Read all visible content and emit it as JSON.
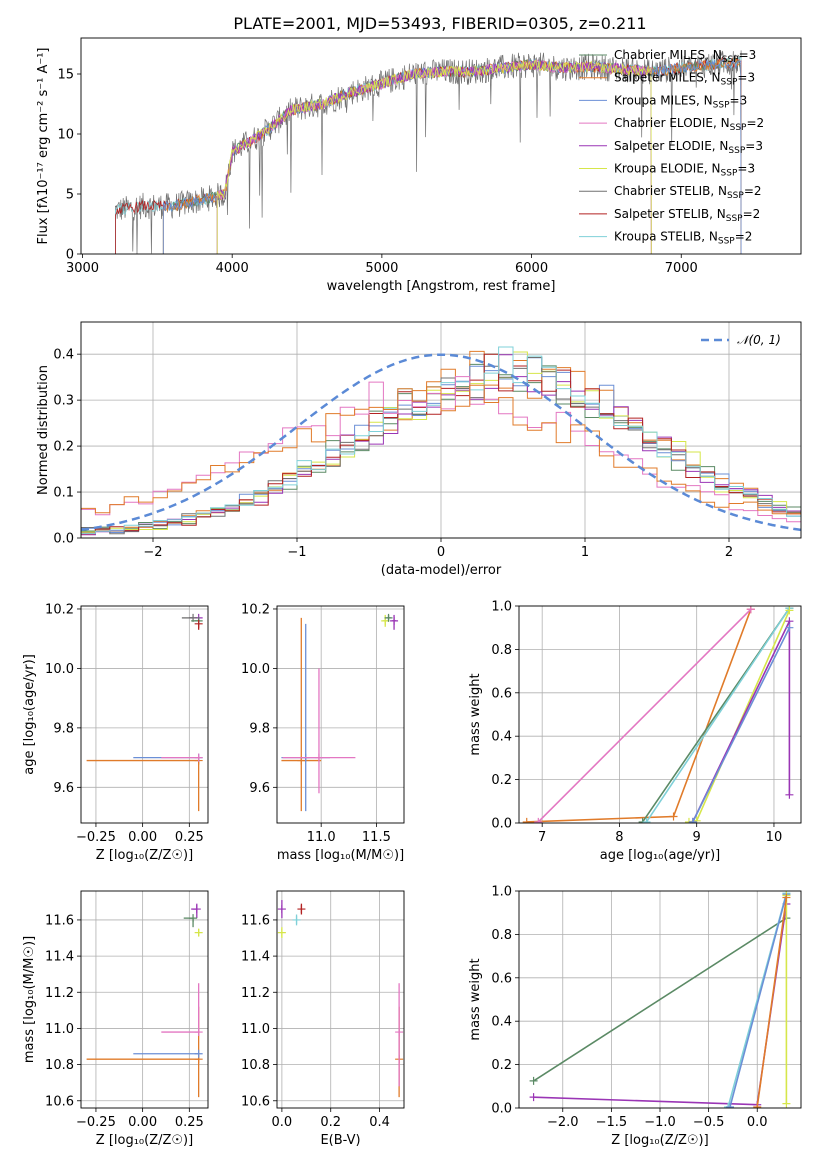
{
  "figure": {
    "title": "PLATE=2001, MJD=53493, FIBERID=0305, z=0.211"
  },
  "colors": {
    "chabrier_miles": "#5b8a65",
    "salpeter_miles": "#e07b2a",
    "kroupa_miles": "#6b8fd6",
    "chabrier_elodie": "#e377c2",
    "salpeter_elodie": "#9a35b5",
    "kroupa_elodie": "#d6e64a",
    "chabrier_stelib": "#707070",
    "salpeter_stelib": "#b22222",
    "kroupa_stelib": "#7fd0d8",
    "normal": "#5b8ad6"
  },
  "chart_data": [
    {
      "id": "spectrum",
      "type": "line",
      "xlabel": "wavelength [Angstrom, rest frame]",
      "ylabel": "Flux [fλ10⁻¹⁷ erg cm⁻² s⁻¹ A⁻¹]",
      "xlim": [
        2990,
        7800
      ],
      "ylim": [
        0,
        18
      ],
      "xticks": [
        3000,
        4000,
        5000,
        6000,
        7000
      ],
      "yticks": [
        0,
        5,
        10,
        15
      ],
      "grid": false,
      "legend_position": "right",
      "series": [
        {
          "key": "chabrier_miles",
          "legend": "Chabrier MILES, N",
          "sub": "SSP",
          "suffix": "=3"
        },
        {
          "key": "salpeter_miles",
          "legend": "Salpeter MILES, N",
          "sub": "SSP",
          "suffix": "=3"
        },
        {
          "key": "kroupa_miles",
          "legend": "Kroupa MILES, N",
          "sub": "SSP",
          "suffix": "=3"
        },
        {
          "key": "chabrier_elodie",
          "legend": "Chabrier ELODIE, N",
          "sub": "SSP",
          "suffix": "=2"
        },
        {
          "key": "salpeter_elodie",
          "legend": "Salpeter ELODIE, N",
          "sub": "SSP",
          "suffix": "=3"
        },
        {
          "key": "kroupa_elodie",
          "legend": "Kroupa ELODIE, N",
          "sub": "SSP",
          "suffix": "=3"
        },
        {
          "key": "chabrier_stelib",
          "legend": "Chabrier STELIB, N",
          "sub": "SSP",
          "suffix": "=2"
        },
        {
          "key": "salpeter_stelib",
          "legend": "Salpeter STELIB, N",
          "sub": "SSP",
          "suffix": "=2"
        },
        {
          "key": "kroupa_stelib",
          "legend": "Kroupa STELIB, N",
          "sub": "SSP",
          "suffix": "=2"
        }
      ],
      "continuum": {
        "x": [
          3200,
          3400,
          3600,
          3800,
          3950,
          4000,
          4200,
          4400,
          4600,
          4800,
          5000,
          5200,
          5400,
          5600,
          5800,
          6000,
          6200,
          6400,
          6600,
          6800,
          7000,
          7200,
          7400
        ],
        "y": [
          3.6,
          4.0,
          4.0,
          4.5,
          5.0,
          8.5,
          10.0,
          12.0,
          12.5,
          13.5,
          14.2,
          15.0,
          15.2,
          15.2,
          15.5,
          15.8,
          15.5,
          15.6,
          15.4,
          15.2,
          15.5,
          15.8,
          16.0
        ]
      },
      "series_ranges": {
        "chabrier_miles": [
          3540,
          7400
        ],
        "salpeter_miles": [
          3540,
          7400
        ],
        "kroupa_miles": [
          3540,
          7400
        ],
        "chabrier_elodie": [
          3900,
          6800
        ],
        "salpeter_elodie": [
          3900,
          6800
        ],
        "kroupa_elodie": [
          3900,
          6800
        ],
        "chabrier_stelib": [
          3220,
          7400
        ],
        "salpeter_stelib": [
          3220,
          7400
        ],
        "kroupa_stelib": [
          3220,
          7400
        ]
      }
    },
    {
      "id": "residual_hist",
      "type": "line",
      "xlabel": "(data-model)/error",
      "ylabel": "Normed distribution",
      "xlim": [
        -2.5,
        2.5
      ],
      "ylim": [
        0,
        0.47
      ],
      "xticks": [
        -2,
        -1,
        0,
        1,
        2
      ],
      "xtick_labels": [
        "−2",
        "−1",
        "0",
        "1",
        "2"
      ],
      "yticks": [
        0.0,
        0.1,
        0.2,
        0.3,
        0.4
      ],
      "ytick_labels": [
        "0.0",
        "0.1",
        "0.2",
        "0.3",
        "0.4"
      ],
      "grid": true,
      "legend_position": "top-right",
      "legend": "𝒩(0, 1)",
      "bin_width": 0.1,
      "histograms": {
        "centered": {
          "mu": 0.0,
          "sigma": 1.0
        },
        "shifted": {
          "mu": 0.45,
          "sigma": 0.95
        }
      },
      "shifted_keys": [
        "chabrier_miles",
        "salpeter_miles",
        "kroupa_miles",
        "salpeter_elodie",
        "kroupa_elodie",
        "chabrier_stelib",
        "salpeter_stelib",
        "kroupa_stelib"
      ],
      "centered_keys": [
        "chabrier_elodie",
        "salpeter_miles"
      ]
    },
    {
      "id": "age_vs_Z",
      "type": "scatter",
      "xlabel": "Z [log₁₀(Z/Z☉)]",
      "ylabel": "age  [log₁₀(age/yr)]",
      "xlim": [
        -0.33,
        0.35
      ],
      "ylim": [
        9.48,
        10.21
      ],
      "xticks": [
        -0.25,
        0.0,
        0.25
      ],
      "xtick_labels": [
        "−0.25",
        "0.00",
        "0.25"
      ],
      "yticks": [
        9.6,
        9.8,
        10.0,
        10.2
      ],
      "ytick_labels": [
        "9.6",
        "9.8",
        "10.0",
        "10.2"
      ],
      "grid": true,
      "errorbars": [
        {
          "key": "salpeter_miles",
          "x": 0.3,
          "y": 9.69,
          "xerr": [
            0.6,
            0.0
          ],
          "yerr": [
            0.17,
            0.0
          ]
        },
        {
          "key": "kroupa_miles",
          "x": 0.3,
          "y": 9.7,
          "xerr": [
            0.35,
            0.0
          ],
          "yerr": [
            0.0,
            0.0
          ]
        },
        {
          "key": "chabrier_elodie",
          "x": 0.3,
          "y": 9.7,
          "xerr": [
            0.2,
            0.0
          ],
          "yerr": [
            0.0,
            0.0
          ]
        },
        {
          "key": "salpeter_elodie",
          "x": 0.3,
          "y": 10.17,
          "xerr": [
            0.05,
            0.0
          ],
          "yerr": [
            0.02,
            0.0
          ]
        },
        {
          "key": "chabrier_stelib",
          "x": 0.27,
          "y": 10.17,
          "xerr": [
            0.06,
            0.0
          ],
          "yerr": [
            0.0,
            0.0
          ]
        },
        {
          "key": "chabrier_miles",
          "x": 0.3,
          "y": 10.16,
          "xerr": [
            0.04,
            0.0
          ],
          "yerr": [
            0.0,
            0.0
          ]
        },
        {
          "key": "salpeter_stelib",
          "x": 0.3,
          "y": 10.15,
          "xerr": [
            0.0,
            0.0
          ],
          "yerr": [
            0.02,
            0.0
          ]
        }
      ]
    },
    {
      "id": "age_vs_mass",
      "type": "scatter",
      "xlabel": "mass [log₁₀(M/M☉)]",
      "ylabel": "",
      "xlim": [
        10.6,
        11.75
      ],
      "ylim": [
        9.48,
        10.21
      ],
      "xticks": [
        11.0,
        11.5
      ],
      "xtick_labels": [
        "11.0",
        "11.5"
      ],
      "yticks": [
        9.6,
        9.8,
        10.0,
        10.2
      ],
      "ytick_labels": [
        "9.6",
        "9.8",
        "10.0",
        "10.2"
      ],
      "grid": true,
      "errorbars": [
        {
          "key": "salpeter_miles",
          "x": 10.82,
          "y": 9.69,
          "xerr": [
            0.18,
            0.18
          ],
          "yerr": [
            0.17,
            0.48
          ]
        },
        {
          "key": "kroupa_miles",
          "x": 10.86,
          "y": 9.7,
          "xerr": [
            0.22,
            0.22
          ],
          "yerr": [
            0.18,
            0.45
          ]
        },
        {
          "key": "chabrier_elodie",
          "x": 10.98,
          "y": 9.7,
          "xerr": [
            0.33,
            0.33
          ],
          "yerr": [
            0.12,
            0.3
          ]
        },
        {
          "key": "salpeter_elodie",
          "x": 11.66,
          "y": 10.16,
          "xerr": [
            0.02,
            0.02
          ],
          "yerr": [
            0.03,
            0.02
          ]
        },
        {
          "key": "kroupa_elodie",
          "x": 11.58,
          "y": 10.16,
          "xerr": [
            0.02,
            0.02
          ],
          "yerr": [
            0.02,
            0.02
          ]
        },
        {
          "key": "chabrier_miles",
          "x": 11.61,
          "y": 10.17,
          "xerr": [
            0.02,
            0.02
          ],
          "yerr": [
            0.01,
            0.01
          ]
        }
      ]
    },
    {
      "id": "weight_vs_age",
      "type": "line",
      "xlabel": "age  [log₁₀(age/yr)]",
      "ylabel": "mass weight",
      "xlim": [
        6.7,
        10.35
      ],
      "ylim": [
        0,
        1
      ],
      "xticks": [
        7,
        8,
        9,
        10
      ],
      "yticks": [
        0.0,
        0.2,
        0.4,
        0.6,
        0.8,
        1.0
      ],
      "ytick_labels": [
        "0.0",
        "0.2",
        "0.4",
        "0.6",
        "0.8",
        "1.0"
      ],
      "grid": true,
      "series": [
        {
          "key": "salpeter_miles",
          "x": [
            6.8,
            8.7,
            9.7
          ],
          "y": [
            0.005,
            0.03,
            0.985
          ]
        },
        {
          "key": "chabrier_elodie",
          "x": [
            6.95,
            9.7
          ],
          "y": [
            0.005,
            0.985
          ]
        },
        {
          "key": "chabrier_miles",
          "x": [
            8.3,
            10.2
          ],
          "y": [
            0.005,
            0.99
          ]
        },
        {
          "key": "kroupa_stelib",
          "x": [
            8.35,
            10.2
          ],
          "y": [
            0.005,
            0.99
          ]
        },
        {
          "key": "kroupa_elodie",
          "x": [
            8.9,
            9.0,
            10.2
          ],
          "y": [
            0.005,
            0.01,
            0.98
          ]
        },
        {
          "key": "salpeter_elodie",
          "x": [
            8.95,
            10.2,
            10.2
          ],
          "y": [
            0.005,
            0.93,
            0.13
          ]
        },
        {
          "key": "kroupa_miles",
          "x": [
            8.95,
            10.2
          ],
          "y": [
            0.005,
            0.9
          ]
        }
      ]
    },
    {
      "id": "mass_vs_Z",
      "type": "scatter",
      "xlabel": "Z [log₁₀(Z/Z☉)]",
      "ylabel": "mass [log₁₀(M/M☉)]",
      "xlim": [
        -0.33,
        0.35
      ],
      "ylim": [
        10.56,
        11.76
      ],
      "xticks": [
        -0.25,
        0.0,
        0.25
      ],
      "xtick_labels": [
        "−0.25",
        "0.00",
        "0.25"
      ],
      "yticks": [
        10.6,
        10.8,
        11.0,
        11.2,
        11.4,
        11.6
      ],
      "ytick_labels": [
        "10.6",
        "10.8",
        "11.0",
        "11.2",
        "11.4",
        "11.6"
      ],
      "grid": true,
      "errorbars": [
        {
          "key": "salpeter_miles",
          "x": 0.3,
          "y": 10.83,
          "xerr": [
            0.6,
            0.0
          ],
          "yerr": [
            0.21,
            0.29
          ]
        },
        {
          "key": "kroupa_miles",
          "x": 0.3,
          "y": 10.86,
          "xerr": [
            0.35,
            0.0
          ],
          "yerr": [
            0.0,
            0.0
          ]
        },
        {
          "key": "chabrier_elodie",
          "x": 0.3,
          "y": 10.98,
          "xerr": [
            0.2,
            0.0
          ],
          "yerr": [
            0.0,
            0.27
          ]
        },
        {
          "key": "salpeter_elodie",
          "x": 0.29,
          "y": 11.66,
          "xerr": [
            0.03,
            0.0
          ],
          "yerr": [
            0.05,
            0.03
          ]
        },
        {
          "key": "chabrier_miles",
          "x": 0.27,
          "y": 11.61,
          "xerr": [
            0.05,
            0.0
          ],
          "yerr": [
            0.05,
            0.0
          ]
        },
        {
          "key": "kroupa_elodie",
          "x": 0.3,
          "y": 11.53,
          "xerr": [
            0.0,
            0.0
          ],
          "yerr": [
            0.02,
            0.02
          ]
        }
      ]
    },
    {
      "id": "mass_vs_ebv",
      "type": "scatter",
      "xlabel": "E(B-V)",
      "ylabel": "",
      "xlim": [
        -0.02,
        0.5
      ],
      "ylim": [
        10.56,
        11.76
      ],
      "xticks": [
        0.0,
        0.2,
        0.4
      ],
      "xtick_labels": [
        "0.0",
        "0.2",
        "0.4"
      ],
      "yticks": [
        10.6,
        10.8,
        11.0,
        11.2,
        11.4,
        11.6
      ],
      "ytick_labels": [
        "10.6",
        "10.8",
        "11.0",
        "11.2",
        "11.4",
        "11.6"
      ],
      "grid": true,
      "errorbars": [
        {
          "key": "salpeter_miles",
          "x": 0.48,
          "y": 10.83,
          "xerr": [
            0.0,
            0.0
          ],
          "yerr": [
            0.21,
            0.29
          ]
        },
        {
          "key": "chabrier_elodie",
          "x": 0.48,
          "y": 10.98,
          "xerr": [
            0.0,
            0.0
          ],
          "yerr": [
            0.3,
            0.27
          ]
        },
        {
          "key": "salpeter_elodie",
          "x": 0.0,
          "y": 11.66,
          "xerr": [
            0.0,
            0.0
          ],
          "yerr": [
            0.05,
            0.05
          ]
        },
        {
          "key": "kroupa_elodie",
          "x": 0.0,
          "y": 11.53,
          "xerr": [
            0.0,
            0.0
          ],
          "yerr": [
            0.03,
            0.03
          ]
        },
        {
          "key": "salpeter_stelib",
          "x": 0.08,
          "y": 11.66,
          "xerr": [
            0.0,
            0.0
          ],
          "yerr": [
            0.03,
            0.03
          ]
        },
        {
          "key": "kroupa_stelib",
          "x": 0.06,
          "y": 11.6,
          "xerr": [
            0.0,
            0.0
          ],
          "yerr": [
            0.03,
            0.03
          ]
        }
      ]
    },
    {
      "id": "weight_vs_Z",
      "type": "line",
      "xlabel": "Z [log₁₀(Z/Z☉)]",
      "ylabel": "mass weight",
      "xlim": [
        -2.45,
        0.45
      ],
      "ylim": [
        0,
        1
      ],
      "xticks": [
        -2.0,
        -1.5,
        -1.0,
        -0.5,
        0.0
      ],
      "xtick_labels": [
        "−2.0",
        "−1.5",
        "−1.0",
        "−0.5",
        "0.0"
      ],
      "yticks": [
        0.0,
        0.2,
        0.4,
        0.6,
        0.8,
        1.0
      ],
      "ytick_labels": [
        "0.0",
        "0.2",
        "0.4",
        "0.6",
        "0.8",
        "1.0"
      ],
      "grid": true,
      "series": [
        {
          "key": "chabrier_miles",
          "x": [
            -2.3,
            0.3
          ],
          "y": [
            0.125,
            0.875
          ]
        },
        {
          "key": "salpeter_elodie",
          "x": [
            -2.3,
            0.0,
            0.3
          ],
          "y": [
            0.05,
            0.015,
            0.94
          ]
        },
        {
          "key": "kroupa_stelib",
          "x": [
            -0.3,
            0.3
          ],
          "y": [
            0.005,
            0.99
          ]
        },
        {
          "key": "kroupa_miles",
          "x": [
            -0.28,
            0.3
          ],
          "y": [
            0.005,
            0.985
          ]
        },
        {
          "key": "kroupa_elodie",
          "x": [
            0.3,
            0.3
          ],
          "y": [
            0.02,
            0.98
          ]
        },
        {
          "key": "salpeter_miles",
          "x": [
            0.0,
            0.3
          ],
          "y": [
            0.005,
            0.97
          ]
        }
      ]
    }
  ]
}
